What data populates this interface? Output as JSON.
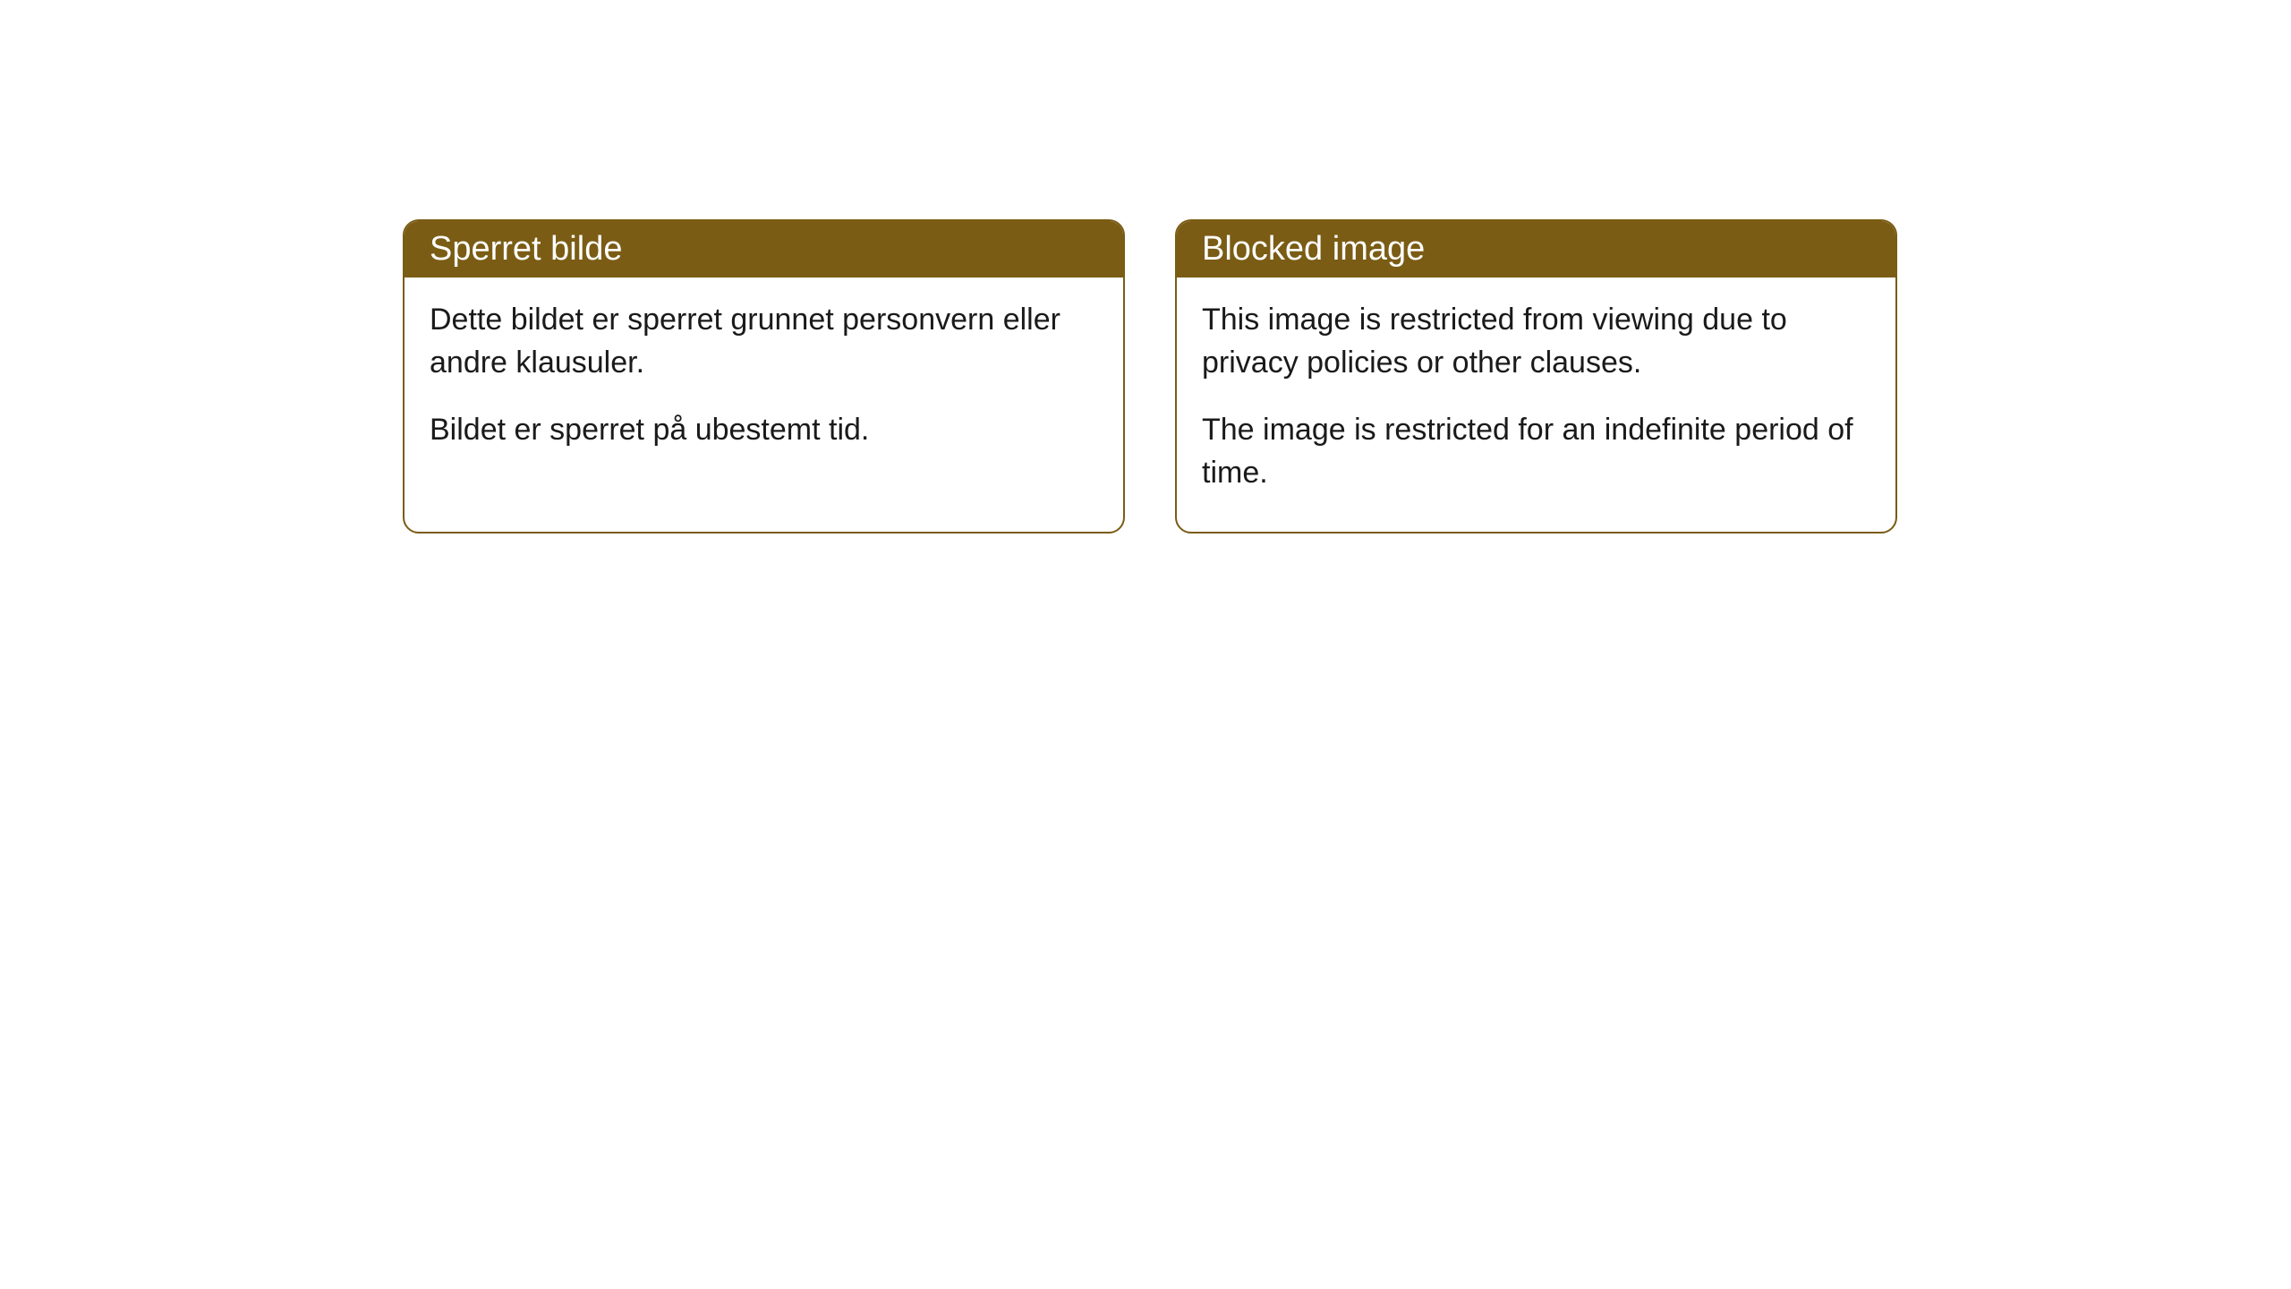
{
  "cards": [
    {
      "title": "Sperret bilde",
      "paragraph1": "Dette bildet er sperret grunnet personvern eller andre klausuler.",
      "paragraph2": "Bildet er sperret på ubestemt tid."
    },
    {
      "title": "Blocked image",
      "paragraph1": "This image is restricted from viewing due to privacy policies or other clauses.",
      "paragraph2": "The image is restricted for an indefinite period of time."
    }
  ],
  "styling": {
    "header_background": "#7a5c14",
    "header_text_color": "#ffffff",
    "card_border_color": "#7a5c14",
    "card_background": "#ffffff",
    "body_text_color": "#1a1a1a",
    "border_radius": 18,
    "header_fontsize": 38,
    "body_fontsize": 34
  }
}
